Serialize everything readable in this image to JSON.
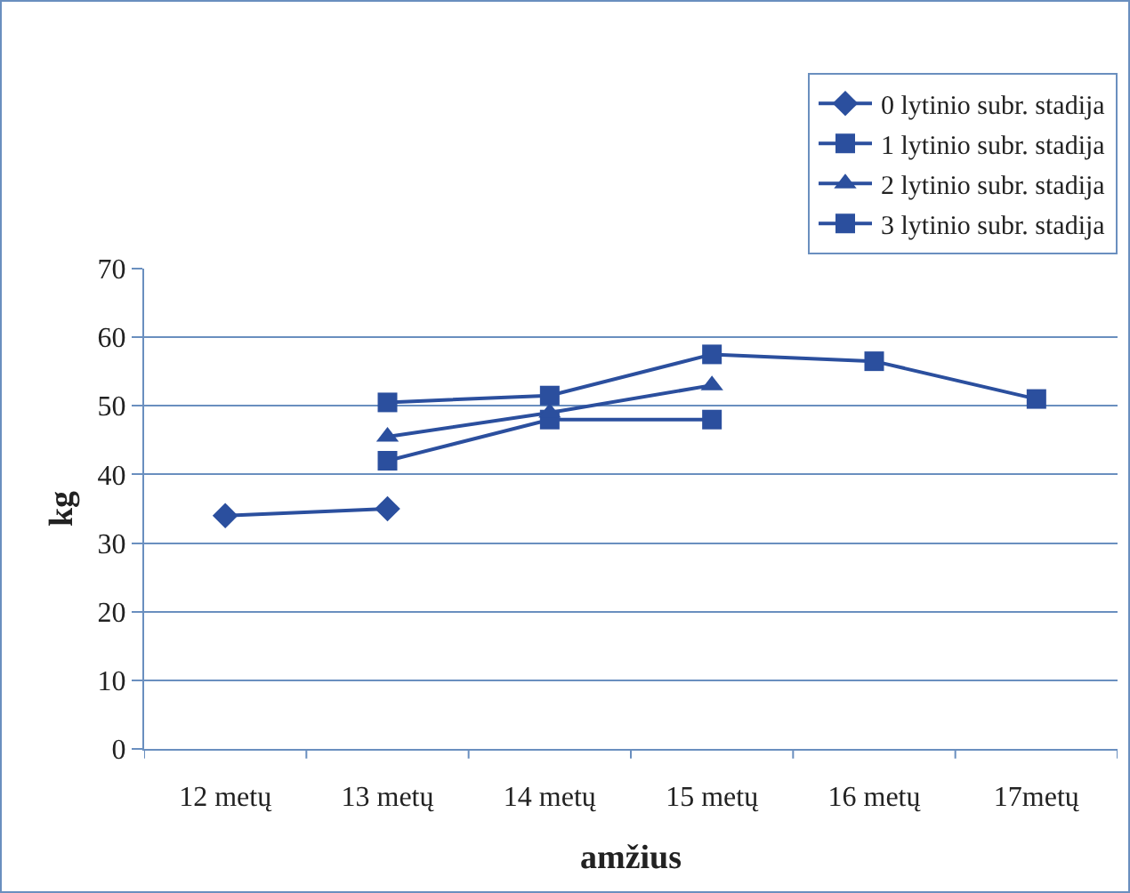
{
  "chart_data": {
    "type": "line",
    "xlabel": "amžius",
    "ylabel": "kg",
    "categories": [
      "12 metų",
      "13 metų",
      "14 metų",
      "15 metų",
      "16 metų",
      "17metų"
    ],
    "series": [
      {
        "name": "0 lytinio subr. stadija",
        "color": "#2b4f9e",
        "marker": "diamond",
        "values": [
          34,
          35,
          null,
          null,
          null,
          null
        ]
      },
      {
        "name": "1 lytinio subr. stadija",
        "color": "#2b4f9e",
        "marker": "square",
        "values": [
          null,
          42,
          48,
          48,
          null,
          null
        ]
      },
      {
        "name": "2 lytinio subr. stadija",
        "color": "#2b4f9e",
        "marker": "triangle",
        "values": [
          null,
          45.5,
          49,
          53,
          null,
          null
        ]
      },
      {
        "name": "3 lytinio subr. stadija",
        "color": "#2b4f9e",
        "marker": "square",
        "values": [
          null,
          50.5,
          51.5,
          57.5,
          56.5,
          51
        ]
      }
    ],
    "ylim": [
      0,
      70
    ],
    "yticks": [
      0,
      10,
      20,
      30,
      40,
      50,
      60,
      70
    ],
    "grid": "y",
    "legend": "top right",
    "line_style": "solid"
  }
}
